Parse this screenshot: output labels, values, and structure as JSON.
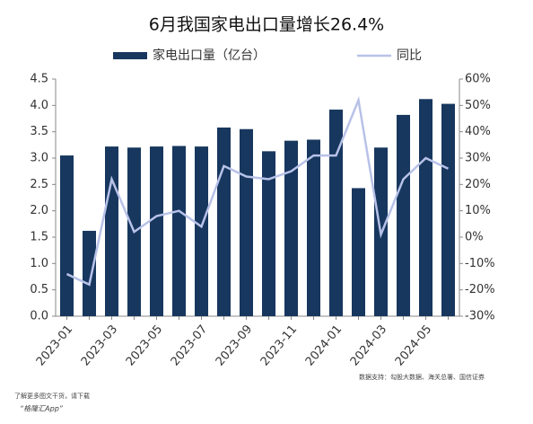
{
  "chart_data": {
    "type": "bar_line",
    "title": "6月我国家电出口量增长26.4%",
    "categories": [
      "2023-01",
      null,
      "2023-03",
      null,
      "2023-05",
      null,
      "2023-07",
      null,
      "2023-09",
      null,
      "2023-11",
      null,
      "2024-01",
      null,
      "2024-03",
      null,
      "2024-05",
      null
    ],
    "series": [
      {
        "name": "家电出口量（亿台）",
        "color": "#17375e",
        "type": "bar",
        "values": [
          3.05,
          1.62,
          3.22,
          3.2,
          3.22,
          3.23,
          3.22,
          3.58,
          3.55,
          3.13,
          3.33,
          3.35,
          3.92,
          2.43,
          3.2,
          3.82,
          4.12,
          4.03
        ]
      },
      {
        "name": "同比",
        "color": "#b8c2e8",
        "type": "line",
        "axis": "y2",
        "values": [
          -14,
          -18,
          22,
          2,
          8,
          10,
          4,
          27,
          23,
          22,
          25,
          31,
          31,
          52,
          1,
          22,
          30,
          26
        ]
      }
    ],
    "ylim": [
      0,
      4.5
    ],
    "yticks": [
      {
        "value": 0,
        "label": "0.0"
      },
      0.5,
      {
        "value": 1,
        "label": "1.0"
      },
      1.5,
      {
        "value": 2,
        "label": "2.0"
      },
      2.5,
      {
        "value": 3,
        "label": "3.0"
      },
      3.5,
      {
        "value": 4,
        "label": "4.0"
      },
      4.5
    ],
    "y2lim": [
      -30,
      60
    ],
    "y2ticks": [
      {
        "value": -30,
        "label": "-30%"
      },
      {
        "value": -20,
        "label": "-20%"
      },
      {
        "value": -10,
        "label": "-10%"
      },
      {
        "value": 0,
        "label": "0%"
      },
      {
        "value": 10,
        "label": "10%"
      },
      {
        "value": 20,
        "label": "20%"
      },
      {
        "value": 30,
        "label": "30%"
      },
      {
        "value": 40,
        "label": "40%"
      },
      {
        "value": 50,
        "label": "50%"
      },
      {
        "value": 60,
        "label": "60%"
      }
    ],
    "grid": false,
    "source": "数据支持：勾股大数据、海关总署、国信证券",
    "footer": [
      "了解更多图文干货，请下载",
      "“格隆汇App”"
    ]
  }
}
